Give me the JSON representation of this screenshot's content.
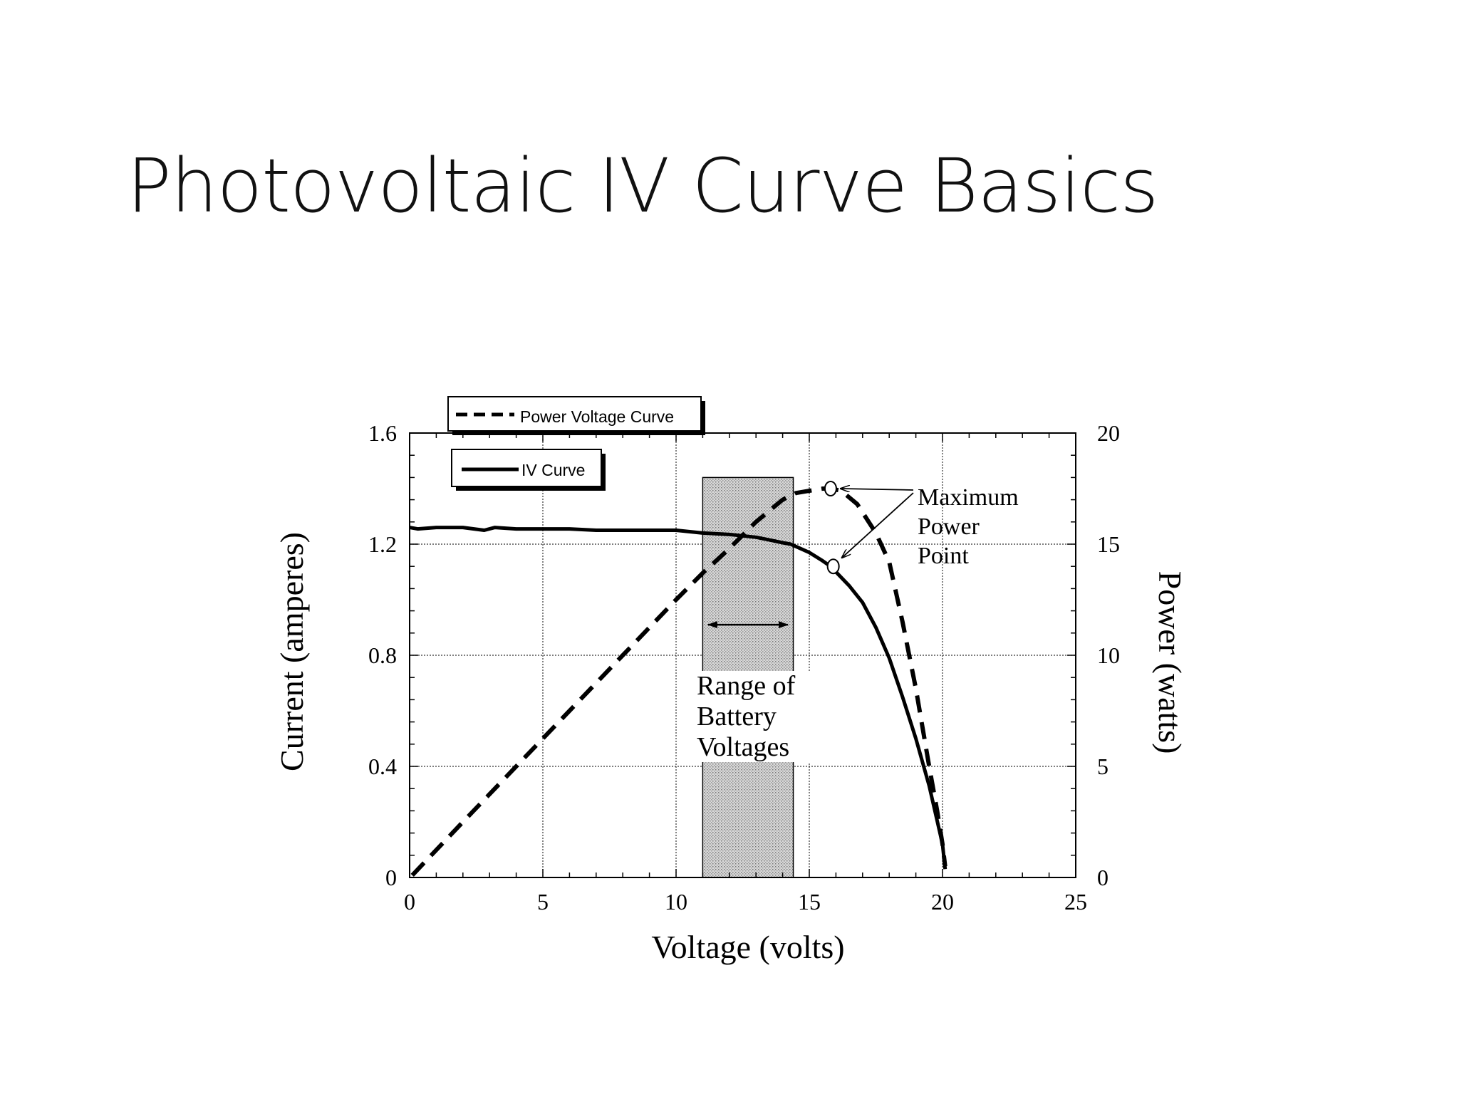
{
  "slide": {
    "title": "Photovoltaic IV Curve Basics"
  },
  "chart_data": {
    "type": "line",
    "xlabel": "Voltage (volts)",
    "ylabel": "Current (amperes)",
    "y2label": "Power (watts)",
    "xlim": [
      0,
      25
    ],
    "ylim": [
      0,
      1.6
    ],
    "y2lim": [
      0,
      20
    ],
    "x_ticks": [
      "0",
      "5",
      "10",
      "15",
      "20",
      "25"
    ],
    "y_ticks": [
      "0",
      "0.4",
      "0.8",
      "1.2",
      "1.6"
    ],
    "y2_ticks": [
      "0",
      "5",
      "10",
      "15",
      "20"
    ],
    "grid": true,
    "legend": [
      {
        "label": "Power Voltage Curve",
        "style": "dashed"
      },
      {
        "label": "IV Curve",
        "style": "solid"
      }
    ],
    "series": [
      {
        "name": "IV Curve",
        "axis": "left",
        "style": "solid",
        "x": [
          0,
          0.3,
          1,
          2,
          2.8,
          3.2,
          4,
          5,
          6,
          7,
          8,
          9,
          10,
          11,
          12,
          12.5,
          13,
          13.5,
          14,
          14.3,
          15,
          15.5,
          15.8,
          16,
          16.5,
          17,
          17.5,
          18,
          18.5,
          19,
          19.5,
          20,
          20.1
        ],
        "y": [
          1.26,
          1.255,
          1.26,
          1.26,
          1.25,
          1.26,
          1.255,
          1.255,
          1.255,
          1.25,
          1.25,
          1.25,
          1.25,
          1.24,
          1.235,
          1.23,
          1.225,
          1.215,
          1.205,
          1.2,
          1.17,
          1.14,
          1.12,
          1.1,
          1.05,
          0.99,
          0.9,
          0.79,
          0.65,
          0.5,
          0.33,
          0.12,
          0.03
        ]
      },
      {
        "name": "Power Voltage Curve",
        "axis": "right",
        "style": "dashed",
        "x": [
          0.1,
          2,
          4,
          6,
          8,
          10,
          11,
          12,
          13,
          14,
          14.5,
          15,
          15.5,
          15.8,
          16.2,
          16.8,
          17.5,
          18,
          18.5,
          19,
          19.5,
          19.8,
          20,
          20.1
        ],
        "y": [
          0.1,
          2.5,
          5,
          7.5,
          10,
          12.5,
          13.7,
          14.8,
          16,
          17,
          17.3,
          17.4,
          17.5,
          17.5,
          17.4,
          16.8,
          15.5,
          14.2,
          11.5,
          8.5,
          5,
          3,
          1.5,
          0.5
        ]
      }
    ],
    "shaded_region": {
      "x_start": 11,
      "x_end": 14.4,
      "y_top": 1.44
    },
    "range_arrow": {
      "x_start": 11.2,
      "x_end": 14.2,
      "y": 0.91
    },
    "mpp_points": [
      {
        "x": 15.8,
        "y_power": 17.5
      },
      {
        "x": 15.9,
        "y_current": 1.12
      }
    ],
    "annotations": {
      "mpp_label": [
        "Maximum",
        "Power",
        "Point"
      ],
      "battery_label": [
        "Range of",
        "Battery",
        "Voltages"
      ]
    }
  }
}
